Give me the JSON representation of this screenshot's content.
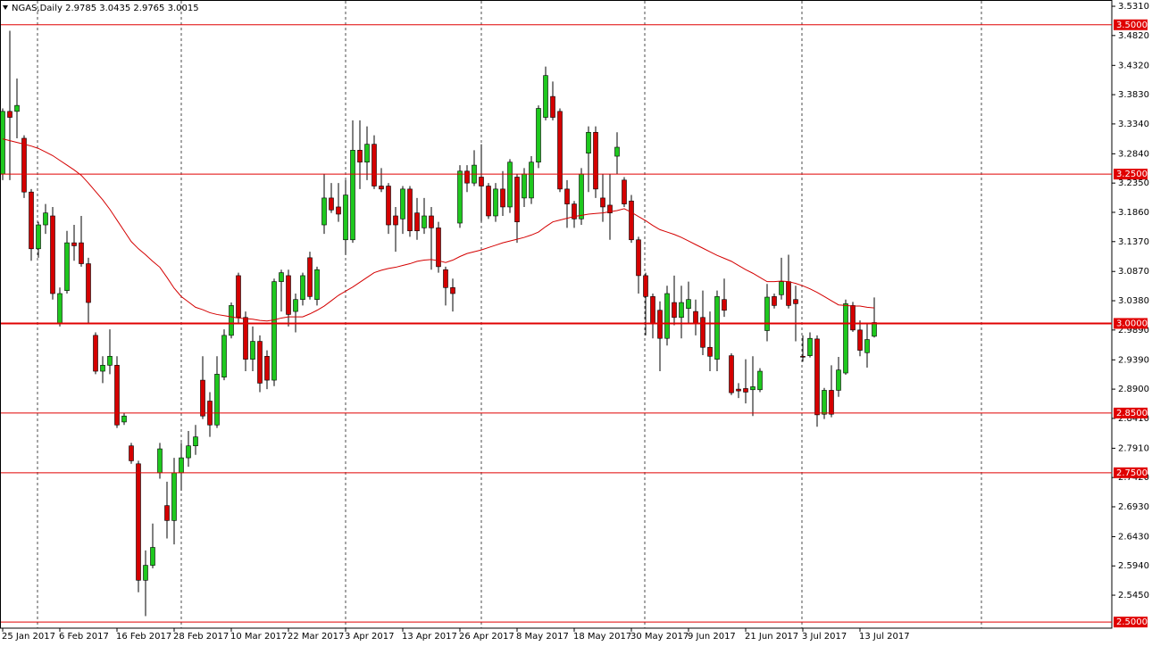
{
  "chart_data": {
    "type": "candlestick",
    "title": "NGAS,Daily  2.9785 3.0435 2.9765 3.0015",
    "categories": [
      "25 Jan 2017",
      null,
      null,
      null,
      null,
      null,
      null,
      null,
      "6 Feb 2017",
      null,
      null,
      null,
      null,
      null,
      null,
      null,
      "16 Feb 2017",
      null,
      null,
      null,
      null,
      null,
      null,
      null,
      "28 Feb 2017",
      null,
      null,
      null,
      null,
      null,
      null,
      null,
      "10 Mar 2017",
      null,
      null,
      null,
      null,
      null,
      null,
      null,
      "22 Mar 2017",
      null,
      null,
      null,
      null,
      null,
      null,
      null,
      "3 Apr 2017",
      null,
      null,
      null,
      null,
      null,
      null,
      null,
      "13 Apr 2017",
      null,
      null,
      null,
      null,
      null,
      null,
      null,
      "26 Apr 2017",
      null,
      null,
      null,
      null,
      null,
      null,
      null,
      "8 May 2017",
      null,
      null,
      null,
      null,
      null,
      null,
      null,
      "18 May 2017",
      null,
      null,
      null,
      null,
      null,
      null,
      null,
      "30 May 2017",
      null,
      null,
      null,
      null,
      null,
      null,
      null,
      "9 Jun 2017",
      null,
      null,
      null,
      null,
      null,
      null,
      null,
      "21 Jun 2017",
      null,
      null,
      null,
      null,
      null,
      null,
      null,
      "3 Jul 2017",
      null,
      null,
      null,
      null,
      null,
      null,
      null,
      "13 Jul 2017",
      null,
      null
    ],
    "open": [
      3.25,
      3.355,
      3.355,
      3.31,
      3.22,
      3.125,
      3.165,
      3.18,
      3.0,
      3.055,
      3.135,
      3.135,
      3.1,
      2.98,
      2.92,
      2.93,
      2.93,
      2.835,
      2.795,
      2.765,
      2.57,
      2.595,
      2.75,
      2.695,
      2.67,
      2.75,
      2.775,
      2.795,
      2.905,
      2.87,
      2.83,
      2.91,
      2.98,
      3.08,
      3.01,
      2.94,
      2.97,
      2.945,
      2.905,
      3.07,
      3.08,
      3.02,
      3.04,
      3.11,
      3.04,
      3.165,
      3.21,
      3.195,
      3.14,
      3.14,
      3.29,
      3.27,
      3.3,
      3.23,
      3.23,
      3.18,
      3.175,
      3.225,
      3.185,
      3.16,
      3.18,
      3.16,
      3.09,
      3.06,
      3.168,
      3.255,
      3.235,
      3.245,
      3.23,
      3.18,
      3.225,
      3.195,
      3.245,
      3.21,
      3.21,
      3.27,
      3.345,
      3.38,
      3.355,
      3.225,
      3.2,
      3.175,
      3.285,
      3.32,
      3.21,
      3.198,
      3.28,
      3.24,
      3.205,
      3.14,
      3.08,
      3.045,
      3.022,
      2.975,
      3.035,
      3.01,
      3.025,
      3.02,
      3.01,
      2.96,
      2.94,
      3.04,
      2.946,
      2.89,
      2.891,
      2.889,
      2.889,
      2.988,
      3.045,
      3.048,
      3.07,
      3.04,
      2.945,
      2.946,
      2.974,
      2.848,
      2.888,
      2.888,
      2.917,
      3.03,
      2.989,
      2.951,
      2.9785
    ],
    "high": [
      3.36,
      3.49,
      3.41,
      3.315,
      3.225,
      3.17,
      3.2,
      3.195,
      3.06,
      3.155,
      3.165,
      3.18,
      3.11,
      2.985,
      2.945,
      2.99,
      2.945,
      2.85,
      2.8,
      2.77,
      2.62,
      2.665,
      2.8,
      2.735,
      2.775,
      2.8,
      2.82,
      2.83,
      2.945,
      2.885,
      2.945,
      2.99,
      3.035,
      3.085,
      3.02,
      2.995,
      2.98,
      2.955,
      3.075,
      3.09,
      3.09,
      3.05,
      3.085,
      3.12,
      3.095,
      3.25,
      3.235,
      3.235,
      3.24,
      3.34,
      3.34,
      3.33,
      3.315,
      3.26,
      3.235,
      3.195,
      3.23,
      3.23,
      3.21,
      3.21,
      3.195,
      3.17,
      3.095,
      3.075,
      3.265,
      3.265,
      3.29,
      3.3,
      3.235,
      3.235,
      3.255,
      3.275,
      3.25,
      3.26,
      3.28,
      3.365,
      3.43,
      3.405,
      3.36,
      3.24,
      3.205,
      3.26,
      3.33,
      3.33,
      3.25,
      3.25,
      3.32,
      3.245,
      3.215,
      3.145,
      3.085,
      3.05,
      3.037,
      3.063,
      3.08,
      3.063,
      3.07,
      3.04,
      3.055,
      3.02,
      3.055,
      3.075,
      2.95,
      2.9,
      2.94,
      2.945,
      2.925,
      3.066,
      3.05,
      3.11,
      3.115,
      3.063,
      2.98,
      2.985,
      2.98,
      2.892,
      2.93,
      2.944,
      3.04,
      3.036,
      3.005,
      3.0,
      3.0435
    ],
    "low": [
      3.24,
      3.24,
      3.31,
      3.21,
      3.105,
      3.11,
      3.15,
      3.04,
      2.995,
      3.05,
      3.105,
      3.095,
      3.0,
      2.915,
      2.9,
      2.915,
      2.825,
      2.83,
      2.765,
      2.55,
      2.51,
      2.59,
      2.74,
      2.64,
      2.63,
      2.72,
      2.76,
      2.78,
      2.84,
      2.81,
      2.825,
      2.905,
      2.975,
      3.0,
      2.92,
      2.92,
      2.885,
      2.89,
      2.895,
      3.02,
      2.995,
      2.985,
      3.03,
      3.04,
      3.03,
      3.15,
      3.185,
      3.17,
      3.115,
      3.135,
      3.225,
      3.24,
      3.225,
      3.22,
      3.15,
      3.12,
      3.15,
      3.145,
      3.14,
      3.15,
      3.09,
      3.085,
      3.03,
      3.02,
      3.16,
      3.22,
      3.23,
      3.17,
      3.175,
      3.17,
      3.18,
      3.185,
      3.135,
      3.195,
      3.2,
      3.26,
      3.34,
      3.34,
      3.22,
      3.16,
      3.16,
      3.165,
      3.22,
      3.21,
      3.17,
      3.14,
      3.25,
      3.195,
      3.135,
      3.05,
      2.98,
      2.975,
      2.92,
      2.963,
      2.997,
      2.975,
      3.0,
      2.98,
      2.947,
      2.92,
      2.92,
      3.011,
      2.88,
      2.875,
      2.866,
      2.845,
      2.885,
      2.97,
      3.025,
      3.04,
      3.025,
      2.97,
      2.936,
      2.943,
      2.827,
      2.84,
      2.843,
      2.877,
      2.914,
      2.986,
      2.945,
      2.926,
      2.9765
    ],
    "close": [
      3.355,
      3.345,
      3.365,
      3.22,
      3.125,
      3.165,
      3.185,
      3.05,
      3.05,
      3.135,
      3.13,
      3.1,
      3.035,
      2.92,
      2.93,
      2.945,
      2.83,
      2.845,
      2.77,
      2.57,
      2.595,
      2.625,
      2.79,
      2.67,
      2.75,
      2.775,
      2.795,
      2.81,
      2.845,
      2.83,
      2.915,
      2.98,
      3.03,
      3.01,
      2.94,
      2.97,
      2.9,
      2.905,
      3.07,
      3.085,
      3.015,
      3.04,
      3.08,
      3.045,
      3.09,
      3.21,
      3.19,
      3.183,
      3.215,
      3.29,
      3.27,
      3.3,
      3.23,
      3.225,
      3.165,
      3.165,
      3.225,
      3.155,
      3.155,
      3.18,
      3.16,
      3.095,
      3.06,
      3.05,
      3.255,
      3.235,
      3.265,
      3.23,
      3.18,
      3.225,
      3.195,
      3.27,
      3.17,
      3.25,
      3.27,
      3.36,
      3.415,
      3.345,
      3.225,
      3.2,
      3.175,
      3.25,
      3.32,
      3.225,
      3.195,
      3.185,
      3.295,
      3.2,
      3.14,
      3.08,
      3.045,
      3.0,
      2.975,
      3.05,
      3.01,
      3.035,
      3.04,
      3.0,
      2.96,
      2.945,
      3.045,
      3.022,
      2.884,
      2.887,
      2.885,
      2.894,
      2.92,
      3.044,
      3.03,
      3.07,
      3.03,
      3.033,
      2.944,
      2.975,
      2.847,
      2.888,
      2.848,
      2.922,
      3.033,
      2.989,
      2.955,
      2.973,
      3.0015
    ],
    "up_color": "#1ec81e",
    "down_color": "#d40000",
    "ma": {
      "color": "#d40000",
      "values": [
        3.309,
        3.306,
        3.303,
        3.3,
        3.297,
        3.293,
        3.287,
        3.281,
        3.273,
        3.265,
        3.257,
        3.248,
        3.235,
        3.221,
        3.207,
        3.191,
        3.173,
        3.155,
        3.137,
        3.125,
        3.115,
        3.104,
        3.094,
        3.077,
        3.059,
        3.045,
        3.036,
        3.027,
        3.023,
        3.018,
        3.015,
        3.013,
        3.011,
        3.009,
        3.008,
        3.007,
        3.005,
        3.004,
        3.006,
        3.009,
        3.011,
        3.011,
        3.011,
        3.016,
        3.022,
        3.029,
        3.038,
        3.047,
        3.054,
        3.061,
        3.069,
        3.077,
        3.085,
        3.089,
        3.092,
        3.094,
        3.097,
        3.1,
        3.104,
        3.106,
        3.107,
        3.105,
        3.102,
        3.106,
        3.112,
        3.117,
        3.12,
        3.123,
        3.127,
        3.131,
        3.135,
        3.138,
        3.141,
        3.144,
        3.148,
        3.153,
        3.162,
        3.17,
        3.173,
        3.176,
        3.179,
        3.181,
        3.183,
        3.184,
        3.185,
        3.187,
        3.189,
        3.192,
        3.186,
        3.179,
        3.172,
        3.164,
        3.157,
        3.153,
        3.149,
        3.144,
        3.138,
        3.132,
        3.126,
        3.12,
        3.114,
        3.109,
        3.104,
        3.097,
        3.09,
        3.084,
        3.077,
        3.07,
        3.07,
        3.071,
        3.07,
        3.067,
        3.063,
        3.058,
        3.052,
        3.045,
        3.038,
        3.031,
        3.03,
        3.029,
        3.029,
        3.027,
        3.026
      ]
    },
    "ylim": [
      2.4898,
      3.5415
    ],
    "yticks": [
      {
        "value": 3.531,
        "label": "3.5310"
      },
      {
        "value": 3.482,
        "label": "3.4820"
      },
      {
        "value": 3.432,
        "label": "3.4320"
      },
      {
        "value": 3.383,
        "label": "3.3830"
      },
      {
        "value": 3.334,
        "label": "3.3340"
      },
      {
        "value": 3.284,
        "label": "3.2840"
      },
      {
        "value": 3.235,
        "label": "3.2350"
      },
      {
        "value": 3.186,
        "label": "3.1860"
      },
      {
        "value": 3.137,
        "label": "3.1370"
      },
      {
        "value": 3.087,
        "label": "3.0870"
      },
      {
        "value": 3.038,
        "label": "3.0380"
      },
      {
        "value": 2.989,
        "label": "2.9890"
      },
      {
        "value": 2.939,
        "label": "2.9390"
      },
      {
        "value": 2.89,
        "label": "2.8900"
      },
      {
        "value": 2.841,
        "label": "2.8410"
      },
      {
        "value": 2.791,
        "label": "2.7910"
      },
      {
        "value": 2.742,
        "label": "2.7420"
      },
      {
        "value": 2.693,
        "label": "2.6930"
      },
      {
        "value": 2.643,
        "label": "2.6430"
      },
      {
        "value": 2.594,
        "label": "2.5940"
      },
      {
        "value": 2.545,
        "label": "2.5450"
      }
    ],
    "levels": [
      {
        "value": 3.5,
        "label": "3.5000",
        "width": 1
      },
      {
        "value": 3.25,
        "label": "3.2500",
        "width": 1
      },
      {
        "value": 3.0,
        "label": "3.0000",
        "width": 2
      },
      {
        "value": 2.85,
        "label": "2.8500",
        "width": 1
      },
      {
        "value": 2.75,
        "label": "2.7500",
        "width": 1
      },
      {
        "value": 2.5,
        "label": "2.5000",
        "width": 1
      }
    ],
    "level_color": "#e00000"
  }
}
